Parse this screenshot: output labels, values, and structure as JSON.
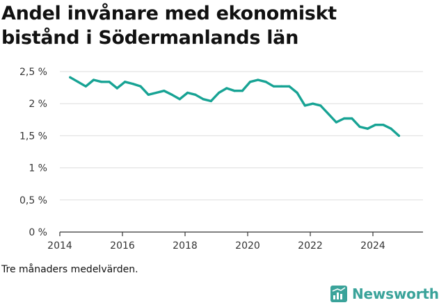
{
  "title": "Andel invånare med ekonomiskt bistånd i Södermanlands län",
  "note": "Tre månaders medelvärden.",
  "brand": {
    "name": "Newsworthy",
    "color": "#3aa39a"
  },
  "colors": {
    "line": "#17a394",
    "grid": "#dddddd",
    "axis": "#333333"
  },
  "chart_data": {
    "type": "line",
    "title": "Andel invånare med ekonomiskt bistånd i Södermanlands län",
    "xlabel": "",
    "ylabel": "",
    "xlim": [
      2014,
      2025.6
    ],
    "ylim": [
      0,
      2.5
    ],
    "grid": true,
    "x_ticks": [
      2014,
      2016,
      2018,
      2020,
      2022,
      2024
    ],
    "x_tick_labels": [
      "2014",
      "2016",
      "2018",
      "2020",
      "2022",
      "2024"
    ],
    "y_ticks": [
      0,
      0.5,
      1,
      1.5,
      2,
      2.5
    ],
    "y_tick_labels": [
      "0 %",
      "0,5 %",
      "1 %",
      "1,5 %",
      "2 %",
      "2,5 %"
    ],
    "series": [
      {
        "x": [
          2014.33,
          2014.58,
          2014.83,
          2015.08,
          2015.33,
          2015.58,
          2015.83,
          2016.08,
          2016.33,
          2016.58,
          2016.83,
          2017.08,
          2017.33,
          2017.58,
          2017.83,
          2018.08,
          2018.33,
          2018.58,
          2018.83,
          2019.08,
          2019.33,
          2019.58,
          2019.83,
          2020.08,
          2020.33,
          2020.58,
          2020.83,
          2021.08,
          2021.33,
          2021.58,
          2021.83,
          2022.08,
          2022.33,
          2022.58,
          2022.83,
          2023.08,
          2023.33,
          2023.58,
          2023.83,
          2024.08,
          2024.33,
          2024.58,
          2024.83
        ],
        "values": [
          2.41,
          2.34,
          2.27,
          2.37,
          2.34,
          2.34,
          2.24,
          2.34,
          2.31,
          2.27,
          2.14,
          2.17,
          2.2,
          2.14,
          2.07,
          2.17,
          2.14,
          2.07,
          2.04,
          2.17,
          2.24,
          2.2,
          2.2,
          2.34,
          2.37,
          2.34,
          2.27,
          2.27,
          2.27,
          2.17,
          1.97,
          2.0,
          1.97,
          1.84,
          1.71,
          1.77,
          1.77,
          1.64,
          1.61,
          1.67,
          1.67,
          1.61,
          1.5
        ]
      }
    ]
  }
}
